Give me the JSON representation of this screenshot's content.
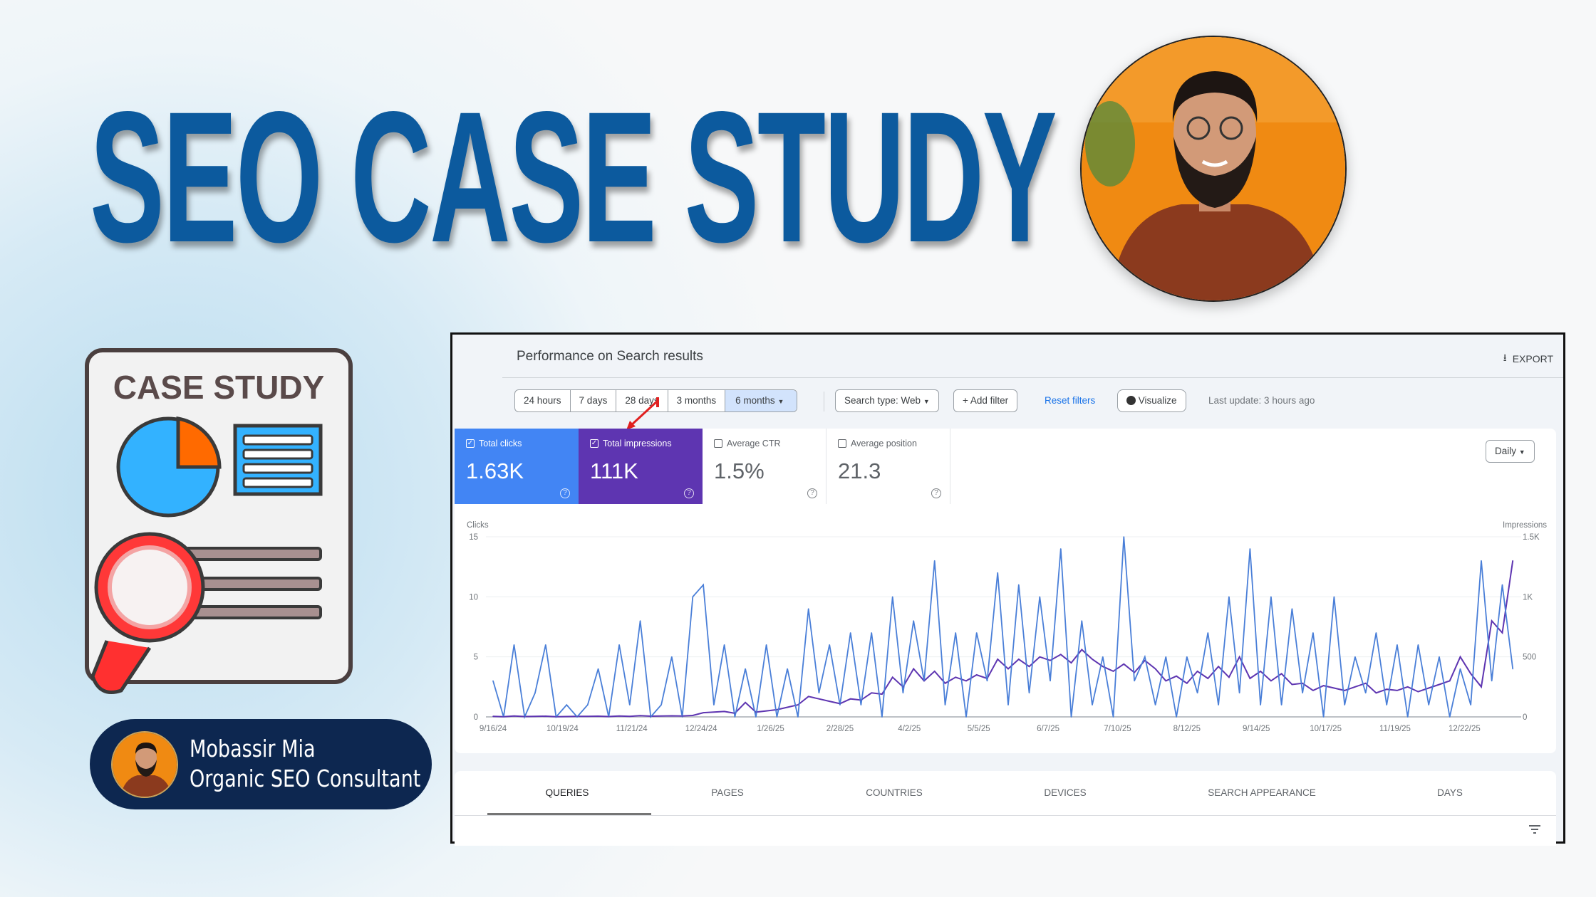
{
  "headline": "SEO CASE STUDY",
  "illustration": {
    "label": "CASE STUDY"
  },
  "author": {
    "name": "Mobassir Mia",
    "role": "Organic SEO Consultant"
  },
  "panel": {
    "title": "Performance on Search results",
    "export_label": "EXPORT",
    "date_ranges": [
      "24 hours",
      "7 days",
      "28 days",
      "3 months",
      "6 months"
    ],
    "selected_range": "6 months",
    "search_type": "Search type: Web",
    "add_filter": "Add filter",
    "reset_filters": "Reset filters",
    "visualize": "Visualize",
    "last_update": "Last update: 3 hours ago",
    "granularity": "Daily",
    "metrics": [
      {
        "label": "Total clicks",
        "value": "1.63K",
        "checked": true,
        "color": "#4285f4"
      },
      {
        "label": "Total impressions",
        "value": "111K",
        "checked": true,
        "color": "#5e35b1"
      },
      {
        "label": "Average CTR",
        "value": "1.5%",
        "checked": false
      },
      {
        "label": "Average position",
        "value": "21.3",
        "checked": false
      }
    ],
    "tabs": [
      "QUERIES",
      "PAGES",
      "COUNTRIES",
      "DEVICES",
      "SEARCH APPEARANCE",
      "DAYS"
    ],
    "active_tab": "QUERIES"
  },
  "chart_data": {
    "type": "line",
    "y_left_label": "Clicks",
    "y_right_label": "Impressions",
    "y_left_ticks": [
      "0",
      "5",
      "10",
      "15"
    ],
    "y_right_ticks": [
      "0",
      "500",
      "1K",
      "1.5K"
    ],
    "ylim_left": [
      0,
      15
    ],
    "ylim_right": [
      0,
      1500
    ],
    "x_ticks": [
      "9/16/24",
      "10/19/24",
      "11/21/24",
      "12/24/24",
      "1/26/25",
      "2/28/25",
      "4/2/25",
      "5/5/25",
      "6/7/25",
      "7/10/25",
      "8/12/25",
      "9/14/25",
      "10/17/25",
      "11/19/25",
      "12/22/25"
    ],
    "grid": true,
    "series_colors": {
      "clicks": "#4a7fd8",
      "impressions": "#5e35b1"
    },
    "columns": [
      "date",
      "clicks",
      "impressions"
    ],
    "points": [
      [
        "9/16/24",
        3,
        5
      ],
      [
        "9/21/24",
        0,
        2
      ],
      [
        "9/26/24",
        6,
        8
      ],
      [
        "10/1/24",
        0,
        3
      ],
      [
        "10/6/24",
        2,
        4
      ],
      [
        "10/11/24",
        6,
        6
      ],
      [
        "10/16/24",
        0,
        2
      ],
      [
        "10/21/24",
        1,
        3
      ],
      [
        "10/26/24",
        0,
        4
      ],
      [
        "10/31/24",
        1,
        5
      ],
      [
        "11/5/24",
        4,
        6
      ],
      [
        "11/10/24",
        0,
        3
      ],
      [
        "11/15/24",
        6,
        7
      ],
      [
        "11/20/24",
        1,
        5
      ],
      [
        "11/25/24",
        8,
        10
      ],
      [
        "11/30/24",
        0,
        6
      ],
      [
        "12/5/24",
        1,
        8
      ],
      [
        "12/10/24",
        5,
        9
      ],
      [
        "12/15/24",
        0,
        7
      ],
      [
        "12/20/24",
        10,
        12
      ],
      [
        "12/25/24",
        11,
        35
      ],
      [
        "12/30/24",
        1,
        40
      ],
      [
        "1/4/25",
        6,
        45
      ],
      [
        "1/9/25",
        0,
        30
      ],
      [
        "1/14/25",
        4,
        120
      ],
      [
        "1/19/25",
        0,
        40
      ],
      [
        "1/24/25",
        6,
        50
      ],
      [
        "1/29/25",
        0,
        60
      ],
      [
        "2/3/25",
        4,
        80
      ],
      [
        "2/8/25",
        0,
        100
      ],
      [
        "2/13/25",
        9,
        170
      ],
      [
        "2/18/25",
        2,
        150
      ],
      [
        "2/23/25",
        6,
        130
      ],
      [
        "2/28/25",
        1,
        110
      ],
      [
        "3/5/25",
        7,
        150
      ],
      [
        "3/10/25",
        1,
        140
      ],
      [
        "3/15/25",
        7,
        200
      ],
      [
        "3/20/25",
        0,
        190
      ],
      [
        "3/25/25",
        10,
        330
      ],
      [
        "3/30/25",
        2,
        250
      ],
      [
        "4/4/25",
        8,
        400
      ],
      [
        "4/9/25",
        3,
        300
      ],
      [
        "4/14/25",
        13,
        380
      ],
      [
        "4/19/25",
        1,
        280
      ],
      [
        "4/24/25",
        7,
        330
      ],
      [
        "4/29/25",
        0,
        300
      ],
      [
        "5/4/25",
        7,
        350
      ],
      [
        "5/9/25",
        3,
        320
      ],
      [
        "5/14/25",
        12,
        480
      ],
      [
        "5/19/25",
        1,
        400
      ],
      [
        "5/24/25",
        11,
        480
      ],
      [
        "5/29/25",
        2,
        420
      ],
      [
        "6/3/25",
        10,
        500
      ],
      [
        "6/8/25",
        3,
        470
      ],
      [
        "6/13/25",
        14,
        520
      ],
      [
        "6/18/25",
        0,
        450
      ],
      [
        "6/23/25",
        8,
        560
      ],
      [
        "6/28/25",
        1,
        480
      ],
      [
        "7/3/25",
        5,
        420
      ],
      [
        "7/8/25",
        0,
        380
      ],
      [
        "7/13/25",
        15,
        440
      ],
      [
        "7/18/25",
        3,
        370
      ],
      [
        "7/23/25",
        5,
        470
      ],
      [
        "7/28/25",
        1,
        400
      ],
      [
        "8/2/25",
        5,
        300
      ],
      [
        "8/7/25",
        0,
        340
      ],
      [
        "8/12/25",
        5,
        280
      ],
      [
        "8/17/25",
        2,
        380
      ],
      [
        "8/22/25",
        7,
        320
      ],
      [
        "8/27/25",
        1,
        420
      ],
      [
        "9/1/25",
        10,
        330
      ],
      [
        "9/6/25",
        2,
        500
      ],
      [
        "9/11/25",
        14,
        320
      ],
      [
        "9/16/25",
        1,
        380
      ],
      [
        "9/21/25",
        10,
        300
      ],
      [
        "9/26/25",
        1,
        360
      ],
      [
        "10/1/25",
        9,
        270
      ],
      [
        "10/6/25",
        2,
        280
      ],
      [
        "10/11/25",
        7,
        220
      ],
      [
        "10/16/25",
        0,
        260
      ],
      [
        "10/21/25",
        10,
        240
      ],
      [
        "10/26/25",
        1,
        220
      ],
      [
        "10/31/25",
        5,
        250
      ],
      [
        "11/5/25",
        2,
        280
      ],
      [
        "11/10/25",
        7,
        200
      ],
      [
        "11/15/25",
        1,
        230
      ],
      [
        "11/20/25",
        6,
        220
      ],
      [
        "11/25/25",
        0,
        250
      ],
      [
        "11/30/25",
        6,
        210
      ],
      [
        "12/5/25",
        1,
        240
      ],
      [
        "12/10/25",
        5,
        270
      ],
      [
        "12/15/25",
        0,
        300
      ],
      [
        "12/20/25",
        4,
        500
      ],
      [
        "12/25/25",
        1,
        360
      ],
      [
        "12/30/25",
        13,
        250
      ],
      [
        "1/4/26",
        3,
        800
      ],
      [
        "1/9/26",
        11,
        700
      ],
      [
        "1/14/26",
        4,
        1300
      ]
    ]
  }
}
